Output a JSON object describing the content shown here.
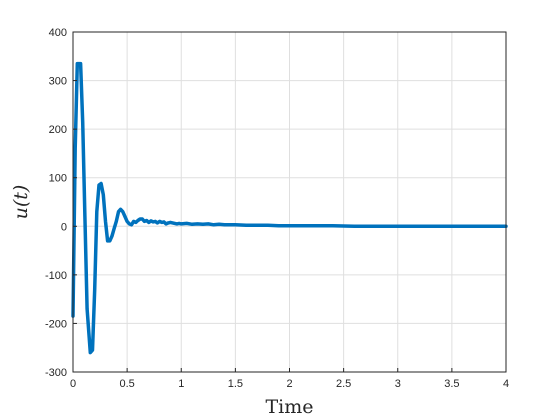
{
  "chart_data": {
    "type": "line",
    "title": "",
    "xlabel": "Time",
    "ylabel": "u(t)",
    "xlim": [
      0,
      4
    ],
    "ylim": [
      -300,
      400
    ],
    "xticks": [
      "0",
      "0.5",
      "1",
      "1.5",
      "2",
      "2.5",
      "3",
      "3.5",
      "4"
    ],
    "yticks": [
      "-300",
      "-200",
      "-100",
      "0",
      "100",
      "200",
      "300",
      "400"
    ],
    "grid": true,
    "legend": "none",
    "series": [
      {
        "color": "#0072BD",
        "x": [
          0.0,
          0.02,
          0.04,
          0.07,
          0.09,
          0.11,
          0.13,
          0.16,
          0.18,
          0.2,
          0.22,
          0.24,
          0.26,
          0.28,
          0.3,
          0.32,
          0.34,
          0.36,
          0.38,
          0.4,
          0.42,
          0.44,
          0.46,
          0.48,
          0.5,
          0.52,
          0.54,
          0.56,
          0.58,
          0.6,
          0.62,
          0.64,
          0.66,
          0.68,
          0.7,
          0.72,
          0.74,
          0.76,
          0.78,
          0.8,
          0.82,
          0.84,
          0.86,
          0.88,
          0.9,
          0.92,
          0.94,
          0.96,
          0.98,
          1.0,
          1.05,
          1.1,
          1.15,
          1.2,
          1.25,
          1.3,
          1.35,
          1.4,
          1.45,
          1.5,
          1.6,
          1.7,
          1.8,
          1.9,
          2.0,
          2.2,
          2.4,
          2.6,
          2.8,
          3.0,
          3.5,
          4.0
        ],
        "values": [
          -185,
          160,
          335,
          335,
          215,
          20,
          -170,
          -260,
          -255,
          -130,
          30,
          85,
          88,
          65,
          10,
          -30,
          -30,
          -20,
          -5,
          10,
          30,
          35,
          30,
          20,
          10,
          5,
          3,
          10,
          8,
          12,
          15,
          15,
          10,
          12,
          8,
          11,
          9,
          10,
          7,
          10,
          8,
          9,
          5,
          7,
          8,
          7,
          6,
          5,
          6,
          5,
          6,
          4,
          5,
          4,
          5,
          3,
          4,
          3,
          3,
          3,
          2,
          2,
          2,
          1,
          1,
          1,
          1,
          0,
          0,
          0,
          0,
          0
        ]
      }
    ]
  }
}
